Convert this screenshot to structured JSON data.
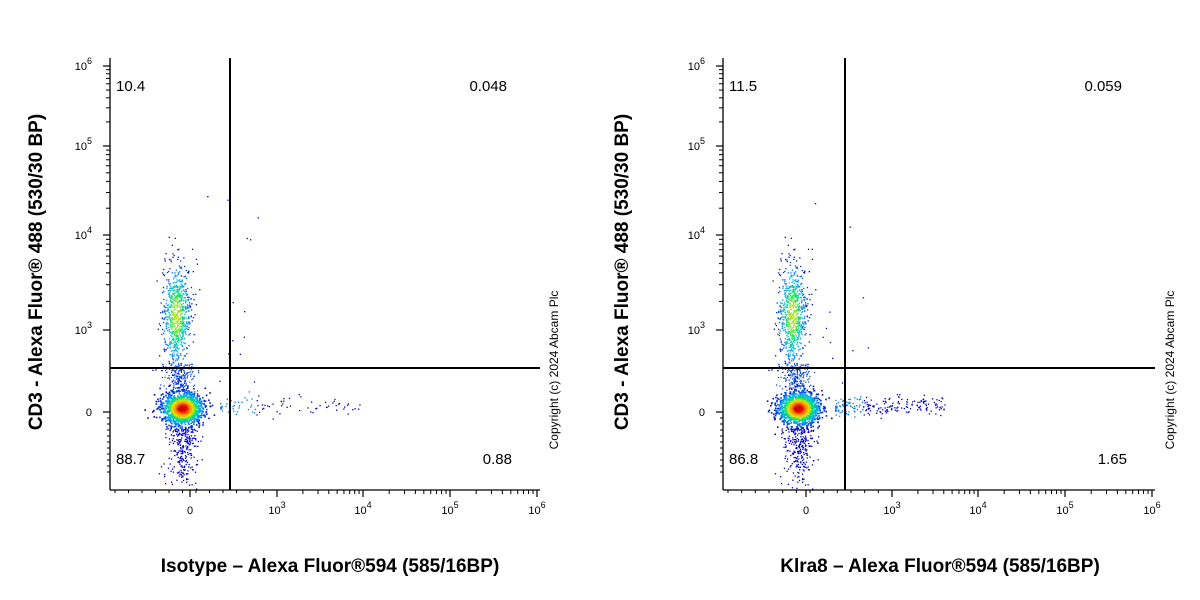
{
  "chart_data": [
    {
      "type": "scatter",
      "subtype": "flow-cytometry-density-dot-plot",
      "xlabel": "Isotype – Alexa Fluor®594 (585/16BP)",
      "ylabel": "CD3 - Alexa Fluor® 488 (530/30 BP)",
      "x_scale": "biexponential",
      "y_scale": "biexponential",
      "x_tick_labels": [
        "0",
        "10^3",
        "10^4",
        "10^5",
        "10^6"
      ],
      "y_tick_labels": [
        "0",
        "10^3",
        "10^4",
        "10^5",
        "10^6"
      ],
      "quadrant_gate": {
        "x": 450,
        "y": 450
      },
      "quadrants": {
        "upper_left": "10.4",
        "upper_right": "0.048",
        "lower_left": "88.7",
        "lower_right": "0.88"
      },
      "populations": [
        {
          "name": "",
          "x_center": 0,
          "y_center": 0,
          "note": "CD3-negative, dense core"
        },
        {
          "name": "",
          "x_center": 0,
          "y_center": 1500,
          "note": "CD3-positive T cells"
        }
      ],
      "copyright": "Copyright (c) 2024 Abcam Plc"
    },
    {
      "type": "scatter",
      "subtype": "flow-cytometry-density-dot-plot",
      "xlabel": "Klra8 – Alexa Fluor®594 (585/16BP)",
      "ylabel": "CD3 - Alexa Fluor® 488 (530/30 BP)",
      "x_scale": "biexponential",
      "y_scale": "biexponential",
      "x_tick_labels": [
        "0",
        "10^3",
        "10^4",
        "10^5",
        "10^6"
      ],
      "y_tick_labels": [
        "0",
        "10^3",
        "10^4",
        "10^5",
        "10^6"
      ],
      "quadrant_gate": {
        "x": 450,
        "y": 450
      },
      "quadrants": {
        "upper_left": "11.5",
        "upper_right": "0.059",
        "lower_left": "86.8",
        "lower_right": "1.65"
      },
      "populations": [
        {
          "name": "",
          "x_center": 0,
          "y_center": 0,
          "note": "CD3-negative, dense core"
        },
        {
          "name": "",
          "x_center": 0,
          "y_center": 1500,
          "note": "CD3-positive T cells"
        },
        {
          "name": "",
          "x_center": 1500,
          "y_center": 0,
          "note": "Klra8-positive tail"
        }
      ],
      "copyright": "Copyright (c) 2024 Abcam Plc"
    }
  ]
}
